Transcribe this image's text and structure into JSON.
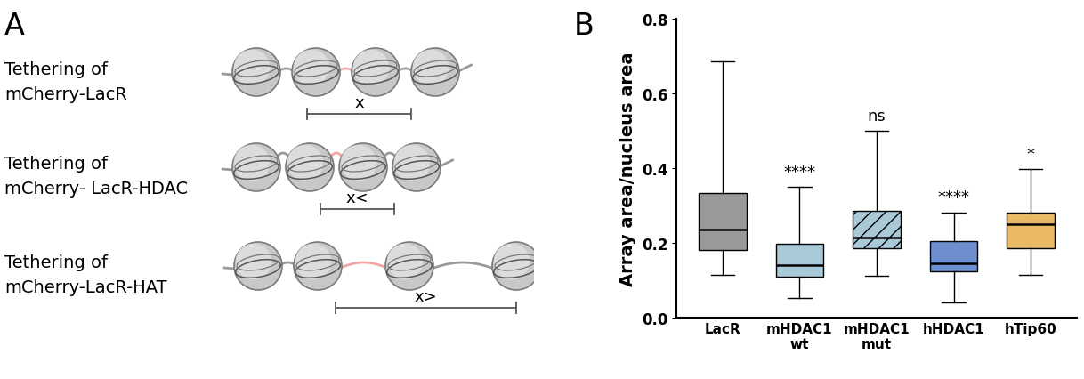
{
  "panel_labels": [
    "A",
    "B"
  ],
  "diagram": {
    "rows": [
      {
        "label": "Tethering of\nmCherry-LacR",
        "distance_label": "x"
      },
      {
        "label": "Tethering of\nmCherry- LacR-HDAC",
        "distance_label": "x<"
      },
      {
        "label": "Tethering of\nmCherry-LacR-HAT",
        "distance_label": "x>"
      }
    ]
  },
  "chart_data": {
    "type": "box",
    "y_label": "Array area/nucleus area",
    "categories": [
      "LacR",
      "mHDAC1\nwt",
      "mHDAC1\nmut",
      "hHDAC1",
      "hTip60"
    ],
    "whisker_low": [
      0.115,
      0.053,
      0.112,
      0.04,
      0.115
    ],
    "q1": [
      0.18,
      0.11,
      0.185,
      0.125,
      0.185
    ],
    "median": [
      0.236,
      0.14,
      0.215,
      0.145,
      0.25
    ],
    "q3": [
      0.333,
      0.198,
      0.285,
      0.205,
      0.28
    ],
    "whisker_high": [
      0.685,
      0.35,
      0.5,
      0.282,
      0.397
    ],
    "significance": [
      null,
      "****",
      "ns",
      "****",
      "*"
    ],
    "colors": [
      "#999999",
      "#a9c8d8",
      "#a9c8d8",
      "#6d8fd0",
      "#e9b965"
    ],
    "ylim": [
      0,
      0.8
    ],
    "yticks": [
      {
        "value": 0,
        "label": "0.0"
      },
      0.2,
      0.4,
      0.6,
      0.8
    ],
    "grid": false
  }
}
